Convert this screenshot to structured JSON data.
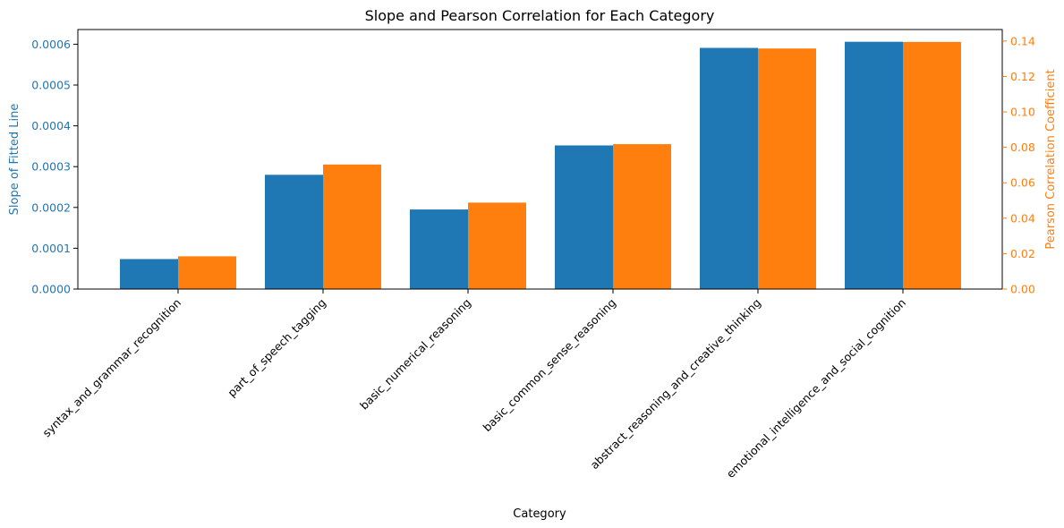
{
  "chart_data": {
    "type": "bar",
    "title": "Slope and Pearson Correlation for Each Category",
    "xlabel": "Category",
    "categories": [
      "syntax_and_grammar_recognition",
      "part_of_speech_tagging",
      "basic_numerical_reasoning",
      "basic_common_sense_reasoning",
      "abstract_reasoning_and_creative_thinking",
      "emotional_intelligence_and_social_cognition"
    ],
    "series": [
      {
        "axis": "left",
        "color": "#1f77b4",
        "values": [
          7.35e-05,
          0.00028,
          0.000195,
          0.000352,
          0.000591,
          0.000606
        ]
      },
      {
        "axis": "right",
        "color": "#ff7f0e",
        "values": [
          0.0185,
          0.0703,
          0.0488,
          0.0818,
          0.1358,
          0.1395
        ]
      }
    ],
    "y_left": {
      "label": "Slope of Fitted Line",
      "color": "#1f77b4",
      "range": [
        0,
        0.000636
      ],
      "ticks": [
        "0.0000",
        "0.0001",
        "0.0002",
        "0.0003",
        "0.0004",
        "0.0005",
        "0.0006"
      ],
      "tick_values": [
        0,
        0.0001,
        0.0002,
        0.0003,
        0.0004,
        0.0005,
        0.0006
      ]
    },
    "y_right": {
      "label": "Pearson Correlation Coefficient",
      "color": "#ff7f0e",
      "range": [
        0,
        0.1465
      ],
      "ticks": [
        "0.00",
        "0.02",
        "0.04",
        "0.06",
        "0.08",
        "0.10",
        "0.12",
        "0.14"
      ],
      "tick_values": [
        0,
        0.02,
        0.04,
        0.06,
        0.08,
        0.1,
        0.12,
        0.14
      ]
    },
    "grid": false,
    "legend": "none"
  }
}
